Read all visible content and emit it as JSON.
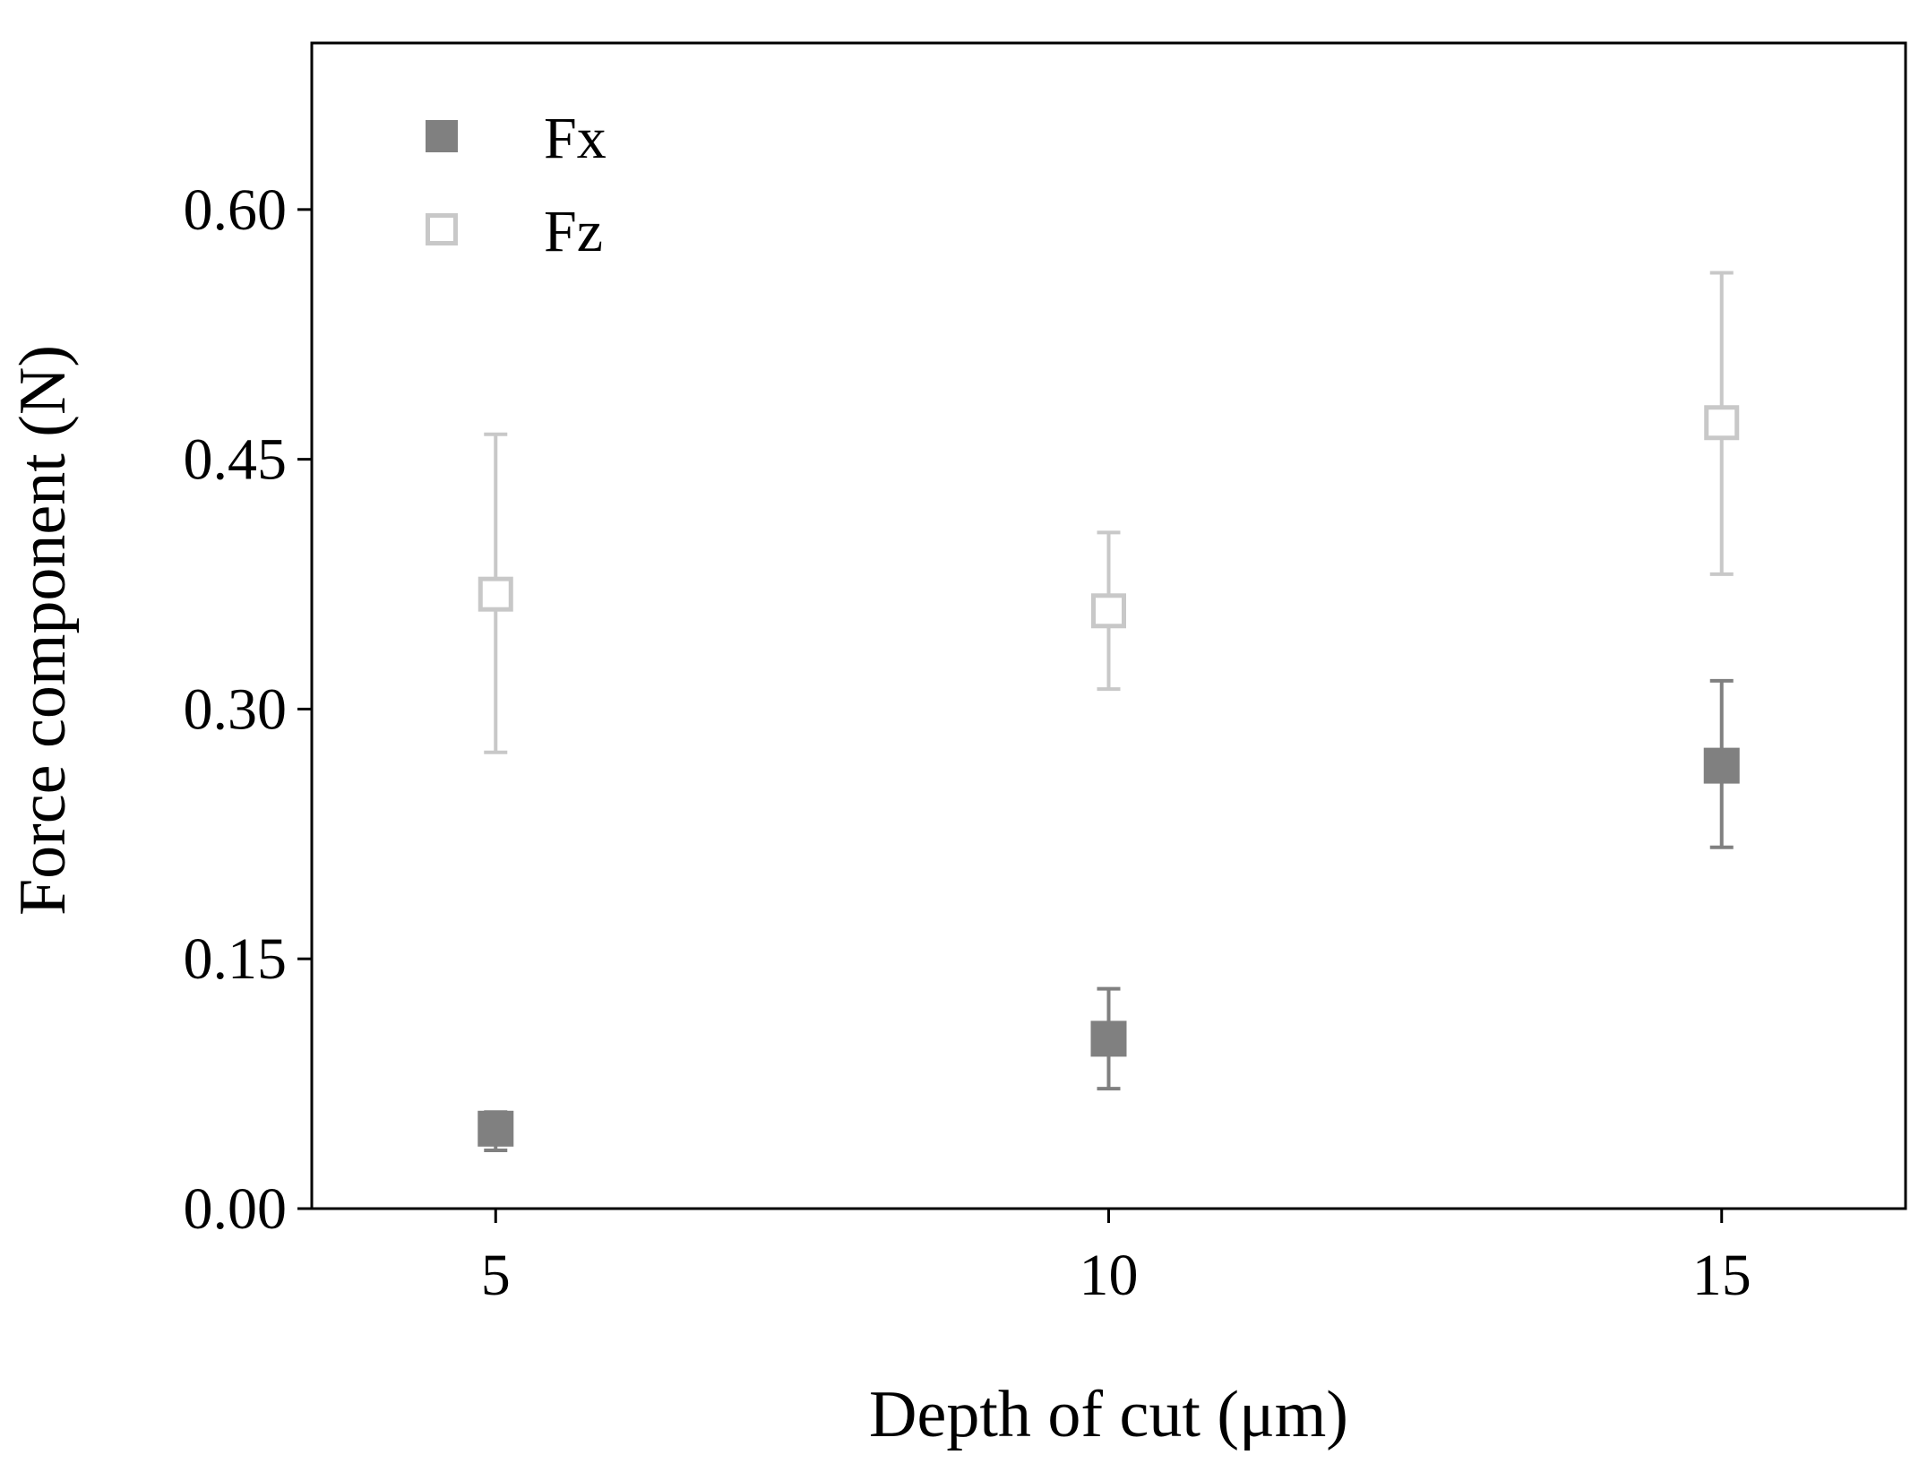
{
  "chart_data": {
    "type": "scatter",
    "title": "",
    "xlabel": "Depth of cut (μm)",
    "ylabel": "Force component (N)",
    "xlim": [
      3.5,
      16.5
    ],
    "ylim": [
      0.0,
      0.7
    ],
    "x_ticks": [
      5,
      10,
      15
    ],
    "x_tick_labels": [
      "5",
      "10",
      "15"
    ],
    "y_ticks": [
      0.0,
      0.15,
      0.3,
      0.45,
      0.6
    ],
    "y_tick_labels": [
      "0.00",
      "0.15",
      "0.30",
      "0.45",
      "0.60"
    ],
    "grid": false,
    "legend_position": "top-left",
    "series": [
      {
        "name": "Fx",
        "marker": "filled-square",
        "color": "#808080",
        "points": [
          {
            "x": 5,
            "y": 0.048,
            "err_low": 0.035,
            "err_high": 0.058
          },
          {
            "x": 10,
            "y": 0.102,
            "err_low": 0.072,
            "err_high": 0.132
          },
          {
            "x": 15,
            "y": 0.266,
            "err_low": 0.217,
            "err_high": 0.317
          }
        ]
      },
      {
        "name": "Fz",
        "marker": "open-square",
        "color": "#c8c8c8",
        "points": [
          {
            "x": 5,
            "y": 0.369,
            "err_low": 0.274,
            "err_high": 0.465
          },
          {
            "x": 10,
            "y": 0.359,
            "err_low": 0.312,
            "err_high": 0.406
          },
          {
            "x": 15,
            "y": 0.472,
            "err_low": 0.381,
            "err_high": 0.562
          }
        ]
      }
    ]
  }
}
